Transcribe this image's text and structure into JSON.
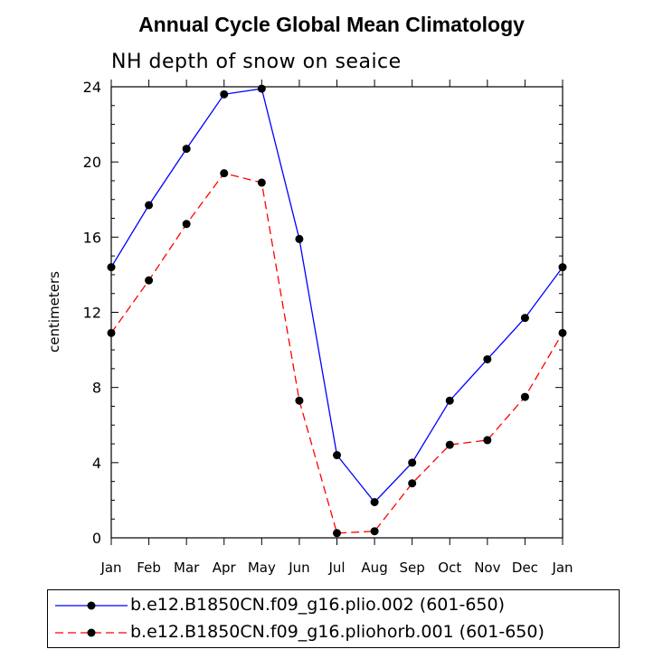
{
  "chart_data": {
    "type": "line",
    "title": "Annual Cycle Global Mean Climatology",
    "subtitle": "NH depth of snow on seaice",
    "xlabel": "",
    "ylabel": "centimeters",
    "categories": [
      "Jan",
      "Feb",
      "Mar",
      "Apr",
      "May",
      "Jun",
      "Jul",
      "Aug",
      "Sep",
      "Oct",
      "Nov",
      "Dec",
      "Jan"
    ],
    "ylim": [
      0,
      24
    ],
    "yticks": [
      0,
      4,
      8,
      12,
      16,
      20,
      24
    ],
    "series": [
      {
        "name": "b.e12.B1850CN.f09_g16.plio.002 (601-650)",
        "color": "#0000ff",
        "dash": "solid",
        "values": [
          14.4,
          17.7,
          20.7,
          23.6,
          23.9,
          15.9,
          4.4,
          1.9,
          4.0,
          7.3,
          9.5,
          11.7,
          14.4
        ]
      },
      {
        "name": "b.e12.B1850CN.f09_g16.pliohorb.001 (601-650)",
        "color": "#ff0000",
        "dash": "dashed",
        "values": [
          10.9,
          13.7,
          16.7,
          19.4,
          18.9,
          7.3,
          0.25,
          0.35,
          2.9,
          4.95,
          5.2,
          7.5,
          10.9
        ]
      }
    ]
  }
}
